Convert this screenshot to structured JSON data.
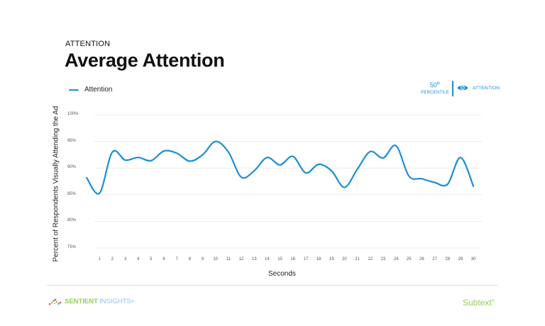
{
  "header": {
    "eyebrow": "ATTENTION",
    "title": "Average Attention"
  },
  "legend": {
    "items": [
      {
        "label": "Attention",
        "color": "#1a8fd1"
      }
    ]
  },
  "badge": {
    "percentile_number": "50",
    "percentile_suffix": "th",
    "percentile_label": "PERCENTILE",
    "icon": "eye-icon",
    "metric_label": "ATTENTION",
    "color": "#1a8fd1"
  },
  "chart_data": {
    "type": "line",
    "title": "Average Attention",
    "xlabel": "Seconds",
    "ylabel": "Percent of Respondents Visually Attending the Ad",
    "ylim": [
      75,
      100
    ],
    "yticks": [
      "100%",
      "95%",
      "90%",
      "85%",
      "80%",
      "75%"
    ],
    "ytick_values": [
      100,
      95,
      90,
      85,
      80,
      75
    ],
    "xticks": [
      "1",
      "2",
      "3",
      "4",
      "5",
      "6",
      "7",
      "8",
      "9",
      "10",
      "11",
      "12",
      "13",
      "14",
      "15",
      "16",
      "17",
      "18",
      "19",
      "20",
      "21",
      "22",
      "23",
      "24",
      "25",
      "26",
      "27",
      "28",
      "29",
      "30"
    ],
    "grid": true,
    "legend_position": "top-left",
    "series": [
      {
        "name": "Attention",
        "color": "#1a8fd1",
        "x": [
          0,
          1,
          2,
          3,
          4,
          5,
          6,
          7,
          8,
          9,
          10,
          11,
          12,
          13,
          14,
          15,
          16,
          17,
          18,
          19,
          20,
          21,
          22,
          23,
          24,
          25,
          26,
          27,
          28,
          29,
          30
        ],
        "values": [
          88.2,
          85.3,
          93.0,
          91.5,
          92.0,
          91.4,
          93.2,
          92.8,
          91.3,
          92.5,
          95.0,
          93.0,
          88.3,
          89.5,
          92.0,
          90.6,
          92.2,
          89.1,
          90.7,
          89.5,
          86.4,
          89.8,
          93.1,
          91.9,
          94.2,
          88.5,
          88.0,
          87.3,
          87.0,
          92.0,
          86.6
        ]
      }
    ]
  },
  "footer": {
    "left_logo_word1": "SENTIENT",
    "left_logo_word2": "INSIGHTS",
    "left_logo_tm": "®",
    "right_logo": "Subtext",
    "right_logo_tm": "®"
  }
}
